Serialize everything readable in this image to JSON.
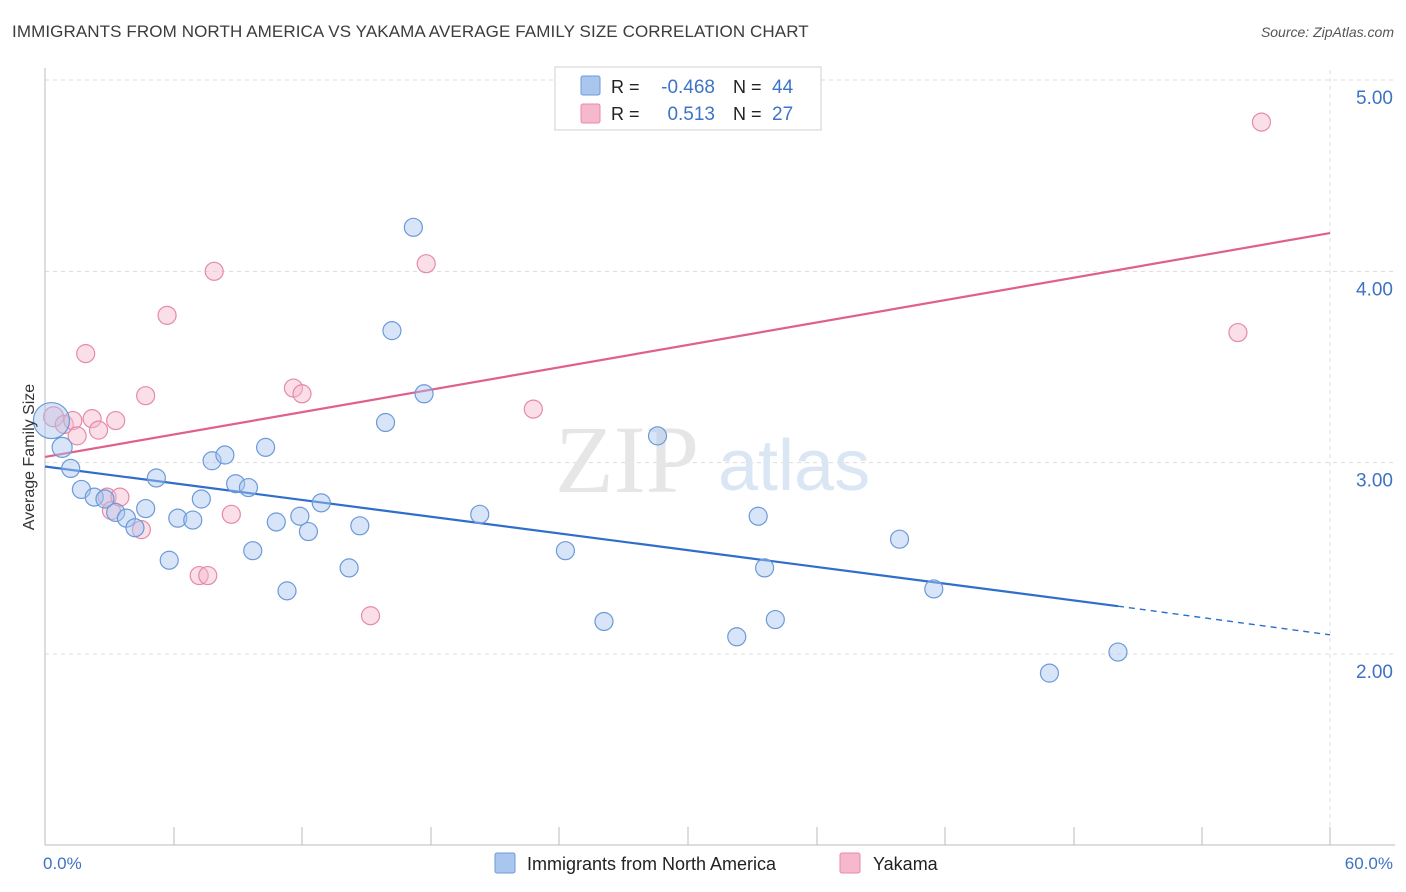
{
  "header": {
    "title": "IMMIGRANTS FROM NORTH AMERICA VS YAKAMA AVERAGE FAMILY SIZE CORRELATION CHART",
    "source": "Source: ZipAtlas.com"
  },
  "watermark": {
    "zip": "ZIP",
    "atlas": "atlas"
  },
  "legend": {
    "rows": [
      {
        "r_label": "R =",
        "r_value": "-0.468",
        "n_label": "N =",
        "n_value": "44",
        "color": "#a9c6ef"
      },
      {
        "r_label": "R =",
        "r_value": "0.513",
        "n_label": "N =",
        "n_value": "27",
        "color": "#f6b8cc"
      }
    ]
  },
  "colors": {
    "blue_fill": "#a9c6ef",
    "blue_stroke": "#6c9ad8",
    "blue_line": "#2f6ecb",
    "pink_fill": "#f6b8cc",
    "pink_stroke": "#e58aa8",
    "pink_line": "#e0608c",
    "grid": "#dcdcdc",
    "axis_text": "#3e72c4"
  },
  "chart_data": {
    "type": "scatter",
    "title": "IMMIGRANTS FROM NORTH AMERICA VS YAKAMA AVERAGE FAMILY SIZE CORRELATION CHART",
    "xlabel": "",
    "ylabel": "Average Family Size",
    "xlim": [
      0,
      60
    ],
    "ylim": [
      1.0,
      5.1
    ],
    "x_tick_labels": [
      "0.0%",
      "60.0%"
    ],
    "y_ticks": [
      2.0,
      3.0,
      4.0,
      5.0
    ],
    "y_tick_labels": [
      "2.00",
      "3.00",
      "4.00",
      "5.00"
    ],
    "series": [
      {
        "name": "Immigrants from North America",
        "points": [
          [
            0.3,
            3.22,
            18
          ],
          [
            0.8,
            3.08,
            10
          ],
          [
            1.2,
            2.97,
            9
          ],
          [
            1.7,
            2.86,
            9
          ],
          [
            2.3,
            2.82,
            9
          ],
          [
            2.8,
            2.81,
            9
          ],
          [
            3.3,
            2.74,
            9
          ],
          [
            3.8,
            2.71,
            9
          ],
          [
            4.2,
            2.66,
            9
          ],
          [
            4.7,
            2.76,
            9
          ],
          [
            5.2,
            2.92,
            9
          ],
          [
            5.8,
            2.49,
            9
          ],
          [
            6.2,
            2.71,
            9
          ],
          [
            6.9,
            2.7,
            9
          ],
          [
            7.3,
            2.81,
            9
          ],
          [
            7.8,
            3.01,
            9
          ],
          [
            8.4,
            3.04,
            9
          ],
          [
            8.9,
            2.89,
            9
          ],
          [
            9.5,
            2.87,
            9
          ],
          [
            9.7,
            2.54,
            9
          ],
          [
            10.3,
            3.08,
            9
          ],
          [
            10.8,
            2.69,
            9
          ],
          [
            11.3,
            2.33,
            9
          ],
          [
            11.9,
            2.72,
            9
          ],
          [
            12.3,
            2.64,
            9
          ],
          [
            12.9,
            2.79,
            9
          ],
          [
            14.2,
            2.45,
            9
          ],
          [
            14.7,
            2.67,
            9
          ],
          [
            15.9,
            3.21,
            9
          ],
          [
            16.2,
            3.69,
            9
          ],
          [
            17.2,
            4.23,
            9
          ],
          [
            17.7,
            3.36,
            9
          ],
          [
            20.3,
            2.73,
            9
          ],
          [
            24.3,
            2.54,
            9
          ],
          [
            26.1,
            2.17,
            9
          ],
          [
            28.6,
            3.14,
            9
          ],
          [
            32.3,
            2.09,
            9
          ],
          [
            33.3,
            2.72,
            9
          ],
          [
            33.6,
            2.45,
            9
          ],
          [
            34.1,
            2.18,
            9
          ],
          [
            39.9,
            2.6,
            9
          ],
          [
            41.5,
            2.34,
            9
          ],
          [
            46.9,
            1.9,
            9
          ],
          [
            50.1,
            2.01,
            9
          ]
        ],
        "trend": {
          "x0": 0.0,
          "y0": 2.98,
          "x1": 50.1,
          "y1": 2.25,
          "dash_x1": 60.0,
          "dash_y1": 2.1
        }
      },
      {
        "name": "Yakama",
        "points": [
          [
            0.4,
            3.24,
            10
          ],
          [
            0.9,
            3.2,
            9
          ],
          [
            1.3,
            3.22,
            9
          ],
          [
            1.5,
            3.14,
            9
          ],
          [
            1.9,
            3.57,
            9
          ],
          [
            2.2,
            3.23,
            9
          ],
          [
            2.5,
            3.17,
            9
          ],
          [
            2.9,
            2.82,
            9
          ],
          [
            3.1,
            2.75,
            9
          ],
          [
            3.3,
            3.22,
            9
          ],
          [
            3.5,
            2.82,
            9
          ],
          [
            4.5,
            2.65,
            9
          ],
          [
            4.7,
            3.35,
            9
          ],
          [
            5.7,
            3.77,
            9
          ],
          [
            7.2,
            2.41,
            9
          ],
          [
            7.6,
            2.41,
            9
          ],
          [
            7.9,
            4.0,
            9
          ],
          [
            8.7,
            2.73,
            9
          ],
          [
            11.6,
            3.39,
            9
          ],
          [
            12.0,
            3.36,
            9
          ],
          [
            15.2,
            2.2,
            9
          ],
          [
            17.8,
            4.04,
            9
          ],
          [
            22.8,
            3.28,
            9
          ],
          [
            55.7,
            3.68,
            9
          ],
          [
            56.8,
            4.78,
            9
          ]
        ],
        "trend": {
          "x0": 0.0,
          "y0": 3.03,
          "x1": 60.0,
          "y1": 4.2
        }
      }
    ],
    "legend_position": "top-center"
  },
  "bottom_legend": {
    "items": [
      {
        "label": "Immigrants from North America"
      },
      {
        "label": "Yakama"
      }
    ]
  }
}
